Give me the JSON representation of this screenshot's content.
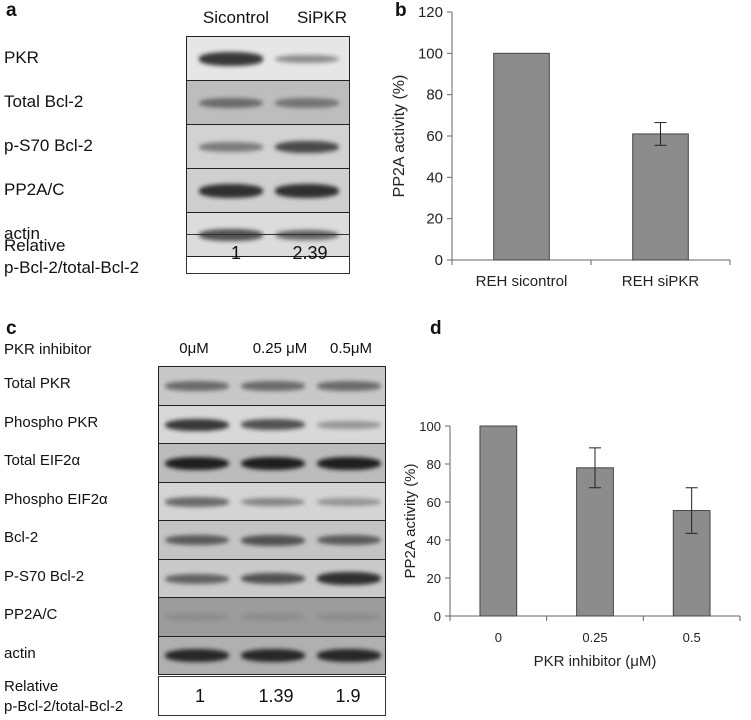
{
  "panel_a": {
    "letter": "a",
    "col_headers": [
      "Sicontrol",
      "SiPKR"
    ],
    "rows": [
      {
        "label": "PKR",
        "band_intensity": [
          0.85,
          0.35
        ],
        "bg": "#e6e6e6"
      },
      {
        "label": "Total Bcl-2",
        "band_intensity": [
          0.55,
          0.5
        ],
        "bg": "#bdbdbd"
      },
      {
        "label": "p-S70 Bcl-2",
        "band_intensity": [
          0.45,
          0.75
        ],
        "bg": "#d2d2d2"
      },
      {
        "label": "PP2A/C",
        "band_intensity": [
          0.9,
          0.9
        ],
        "bg": "#cfcfcf"
      },
      {
        "label": "actin",
        "band_intensity": [
          0.7,
          0.6
        ],
        "bg": "#dcdcdc"
      }
    ],
    "relative_label_line1": "Relative",
    "relative_label_line2": "p-Bcl-2/total-Bcl-2",
    "relative_values": [
      "1",
      "2.39"
    ]
  },
  "panel_c": {
    "letter": "c",
    "row_header": "PKR inhibitor",
    "col_headers": [
      "0μM",
      "0.25 μM",
      "0.5μM"
    ],
    "rows": [
      {
        "label": "Total PKR",
        "band_intensity": [
          0.55,
          0.55,
          0.55
        ],
        "bg": "#c8c8c8"
      },
      {
        "label": "Phospho PKR",
        "band_intensity": [
          0.85,
          0.7,
          0.3
        ],
        "bg": "#d8d8d8"
      },
      {
        "label": "Total EIF2α",
        "band_intensity": [
          1.0,
          1.0,
          1.0
        ],
        "bg": "#bcbcbc"
      },
      {
        "label": "Phospho EIF2α",
        "band_intensity": [
          0.55,
          0.4,
          0.3
        ],
        "bg": "#d4d4d4"
      },
      {
        "label": "Bcl-2",
        "band_intensity": [
          0.65,
          0.7,
          0.65
        ],
        "bg": "#c4c4c4"
      },
      {
        "label": "P-S70 Bcl-2",
        "band_intensity": [
          0.6,
          0.7,
          0.9
        ],
        "bg": "#cacaca"
      },
      {
        "label": "PP2A/C",
        "band_intensity": [
          0.35,
          0.35,
          0.35
        ],
        "bg": "#9c9c9c"
      },
      {
        "label": "actin",
        "band_intensity": [
          0.95,
          0.95,
          0.95
        ],
        "bg": "#b0b0b0"
      }
    ],
    "relative_label_line1": "Relative",
    "relative_label_line2": "p-Bcl-2/total-Bcl-2",
    "relative_values": [
      "1",
      "1.39",
      "1.9"
    ]
  },
  "chart_data": [
    {
      "panel": "b",
      "type": "bar",
      "categories": [
        "REH sicontrol",
        "REH siPKR"
      ],
      "values": [
        100,
        61
      ],
      "errors": [
        0,
        5.5
      ],
      "title": "",
      "xlabel": "",
      "ylabel": "PP2A  activity (%)",
      "ylim": [
        0,
        120
      ],
      "yticks": [
        0,
        20,
        40,
        60,
        80,
        100,
        120
      ],
      "grid": false,
      "bar_color": "#8c8c8c"
    },
    {
      "panel": "d",
      "type": "bar",
      "categories": [
        "0",
        "0.25",
        "0.5"
      ],
      "values": [
        100,
        78,
        55.5
      ],
      "errors": [
        0,
        10.5,
        12
      ],
      "title": "",
      "xlabel": "PKR inhibitor (μM)",
      "ylabel": "PP2A activity (%)",
      "ylim": [
        0,
        100
      ],
      "yticks": [
        0,
        20,
        40,
        60,
        80,
        100
      ],
      "grid": false,
      "bar_color": "#8c8c8c"
    }
  ]
}
